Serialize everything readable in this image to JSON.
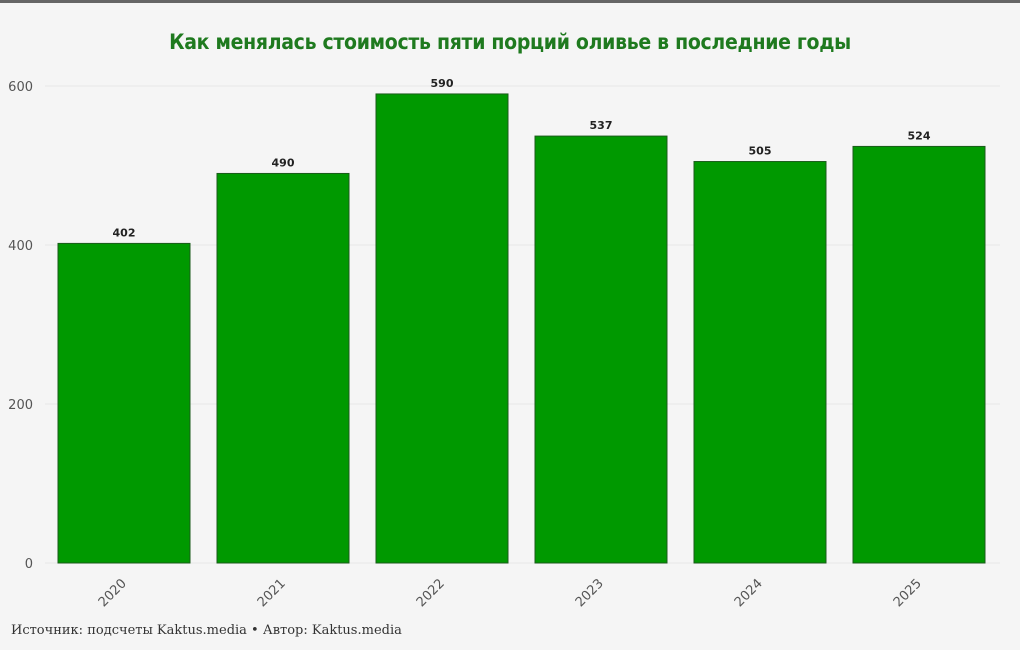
{
  "chart_data": {
    "type": "bar",
    "title": "Как менялась стоимость пяти порций оливье в последние годы",
    "categories": [
      "2020",
      "2021",
      "2022",
      "2023",
      "2024",
      "2025"
    ],
    "values": [
      402,
      490,
      590,
      537,
      505,
      524
    ],
    "ylim": [
      0,
      600
    ],
    "yticks": [
      0,
      200,
      400,
      600
    ],
    "grid": true,
    "bar_color": "#009900",
    "bar_stroke": "#1a5c1a",
    "title_color": "#1f7a1f"
  },
  "footer": "Источник: подсчеты Kaktus.media • Автор: Kaktus.media"
}
